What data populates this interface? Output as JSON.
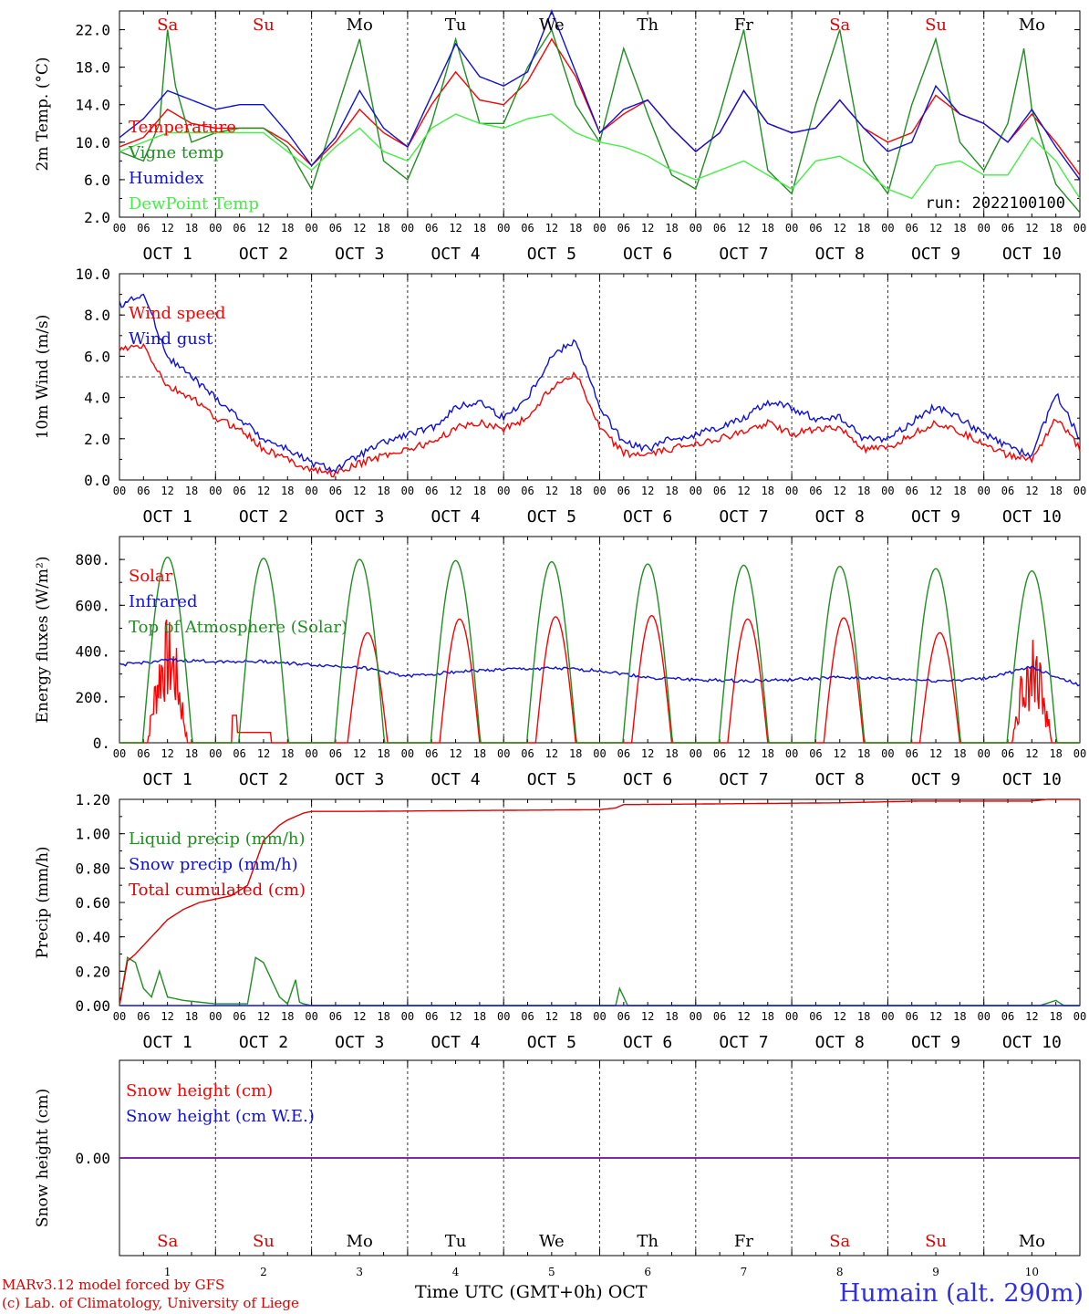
{
  "chart_data": [
    {
      "type": "line",
      "ylabel": "2m Temp. (°C)",
      "ylim": [
        2.0,
        24.0
      ],
      "yticks": [
        2.0,
        6.0,
        10.0,
        14.0,
        18.0,
        22.0
      ],
      "ytick_labels": [
        "2.0",
        "6.0",
        "10.0",
        "14.0",
        "18.0",
        "22.0"
      ],
      "x_unit": "hours since 00 UTC Oct 1",
      "annotation": "run: 2022100100",
      "series": [
        {
          "name": "Temperature",
          "color": "#ff0000",
          "x": [
            0,
            6,
            12,
            18,
            24,
            30,
            36,
            42,
            48,
            54,
            60,
            66,
            72,
            78,
            84,
            90,
            96,
            102,
            108,
            114,
            120,
            126,
            132,
            138,
            144,
            150,
            156,
            162,
            168,
            174,
            180,
            186,
            192,
            198,
            204,
            210,
            216,
            222,
            228,
            234,
            240
          ],
          "values": [
            9.5,
            10.5,
            13.5,
            12.0,
            11.5,
            11.5,
            11.5,
            10.0,
            7.5,
            10.0,
            13.5,
            11.0,
            9.5,
            14.0,
            17.5,
            14.5,
            14.0,
            16.5,
            21.0,
            17.0,
            11.0,
            13.0,
            14.5,
            11.5,
            9.0,
            11.0,
            15.5,
            12.0,
            11.0,
            11.5,
            14.5,
            11.5,
            10.0,
            11.0,
            15.0,
            13.0,
            12.0,
            10.0,
            13.0,
            10.0,
            6.5
          ]
        },
        {
          "name": "Vigne temp",
          "color": "#1f8f1f",
          "x": [
            0,
            6,
            10,
            12,
            14,
            18,
            24,
            30,
            36,
            42,
            48,
            54,
            60,
            66,
            72,
            78,
            84,
            90,
            96,
            102,
            108,
            114,
            120,
            126,
            132,
            138,
            144,
            150,
            156,
            162,
            168,
            174,
            180,
            186,
            192,
            198,
            204,
            210,
            216,
            222,
            226,
            228,
            234,
            240
          ],
          "values": [
            9.0,
            8.0,
            12.0,
            22.0,
            16.0,
            10.0,
            11.0,
            11.5,
            11.5,
            9.5,
            5.0,
            13.0,
            21.0,
            8.0,
            6.0,
            12.0,
            21.0,
            12.0,
            12.0,
            18.0,
            22.0,
            14.0,
            10.0,
            20.0,
            13.0,
            6.5,
            5.0,
            13.0,
            22.0,
            7.0,
            4.5,
            14.0,
            22.0,
            8.0,
            4.5,
            14.0,
            21.0,
            10.0,
            7.0,
            12.0,
            20.0,
            13.5,
            5.5,
            2.5
          ]
        },
        {
          "name": "Humidex",
          "color": "#1010dd",
          "x": [
            0,
            6,
            12,
            18,
            24,
            30,
            36,
            42,
            48,
            54,
            60,
            66,
            72,
            78,
            84,
            90,
            96,
            102,
            108,
            114,
            120,
            126,
            132,
            138,
            144,
            150,
            156,
            162,
            168,
            174,
            180,
            186,
            192,
            198,
            204,
            210,
            216,
            222,
            228,
            234,
            240
          ],
          "values": [
            10.5,
            12.5,
            15.5,
            14.5,
            13.5,
            14.0,
            14.0,
            11.0,
            7.5,
            10.5,
            15.5,
            11.5,
            9.5,
            15.0,
            20.5,
            17.0,
            16.0,
            17.5,
            24.0,
            17.5,
            11.0,
            13.5,
            14.5,
            11.5,
            9.0,
            11.0,
            15.5,
            12.0,
            11.0,
            11.5,
            14.5,
            11.5,
            9.0,
            10.0,
            16.0,
            13.0,
            12.0,
            10.0,
            13.5,
            9.5,
            6.0
          ]
        },
        {
          "name": "DewPoint Temp",
          "color": "#44ee44",
          "x": [
            0,
            6,
            12,
            18,
            24,
            30,
            36,
            42,
            48,
            54,
            60,
            66,
            72,
            78,
            84,
            90,
            96,
            102,
            108,
            114,
            120,
            126,
            132,
            138,
            144,
            150,
            156,
            162,
            168,
            174,
            180,
            186,
            192,
            198,
            204,
            210,
            216,
            222,
            228,
            234,
            240
          ],
          "values": [
            9.0,
            10.0,
            11.0,
            11.0,
            11.0,
            11.0,
            11.0,
            9.0,
            7.0,
            9.5,
            11.5,
            9.0,
            8.0,
            11.5,
            13.0,
            12.0,
            11.5,
            12.5,
            13.0,
            11.0,
            10.0,
            9.5,
            8.5,
            7.0,
            6.0,
            7.0,
            8.0,
            6.5,
            5.0,
            8.0,
            8.5,
            7.0,
            5.0,
            4.0,
            7.5,
            8.0,
            6.5,
            6.5,
            10.5,
            8.0,
            4.0
          ]
        }
      ]
    },
    {
      "type": "line",
      "ylabel": "10m Wind (m/s)",
      "ylim": [
        0.0,
        10.0
      ],
      "yticks": [
        0.0,
        2.0,
        4.0,
        6.0,
        8.0,
        10.0
      ],
      "ytick_labels": [
        "0.0",
        "2.0",
        "4.0",
        "6.0",
        "8.0",
        "10.0"
      ],
      "reference_line": 5.0,
      "x_unit": "hours since 00 UTC Oct 1",
      "series": [
        {
          "name": "Wind speed",
          "color": "#ff0000",
          "x": [
            0,
            6,
            12,
            18,
            24,
            30,
            36,
            42,
            48,
            54,
            60,
            66,
            72,
            78,
            84,
            90,
            96,
            102,
            108,
            114,
            120,
            126,
            132,
            138,
            144,
            150,
            156,
            162,
            168,
            174,
            180,
            186,
            192,
            198,
            204,
            210,
            216,
            222,
            228,
            234,
            240
          ],
          "values": [
            6.3,
            6.5,
            4.5,
            4.0,
            3.0,
            2.5,
            1.5,
            1.0,
            0.5,
            0.3,
            0.8,
            1.2,
            1.5,
            1.8,
            2.5,
            2.8,
            2.5,
            3.0,
            4.5,
            5.2,
            2.5,
            1.3,
            1.2,
            1.5,
            1.8,
            2.0,
            2.3,
            2.8,
            2.2,
            2.5,
            2.5,
            1.5,
            1.5,
            2.2,
            2.8,
            2.3,
            1.8,
            1.2,
            1.0,
            3.0,
            1.5
          ]
        },
        {
          "name": "Wind gust",
          "color": "#1010dd",
          "x": [
            0,
            6,
            12,
            18,
            24,
            30,
            36,
            42,
            48,
            54,
            60,
            66,
            72,
            78,
            84,
            90,
            96,
            102,
            108,
            114,
            120,
            126,
            132,
            138,
            144,
            150,
            156,
            162,
            168,
            174,
            180,
            186,
            192,
            198,
            204,
            210,
            216,
            222,
            228,
            234,
            240
          ],
          "values": [
            8.5,
            9.0,
            6.0,
            5.0,
            4.0,
            3.0,
            2.0,
            1.5,
            0.8,
            0.5,
            1.2,
            1.8,
            2.2,
            2.5,
            3.5,
            3.8,
            3.0,
            4.0,
            6.0,
            6.8,
            3.5,
            1.8,
            1.5,
            2.0,
            2.2,
            2.6,
            3.0,
            3.8,
            3.5,
            3.0,
            3.0,
            2.0,
            2.0,
            2.8,
            3.6,
            3.0,
            2.2,
            1.6,
            1.2,
            4.2,
            2.0
          ]
        }
      ]
    },
    {
      "type": "line",
      "ylabel": "Energy fluxes (W/m²)",
      "ylim": [
        0,
        900
      ],
      "yticks": [
        0,
        200,
        400,
        600,
        800
      ],
      "ytick_labels": [
        "0.",
        "200.",
        "400.",
        "600.",
        "800."
      ],
      "x_unit": "hours since 00 UTC Oct 1",
      "series": [
        {
          "name": "Solar",
          "color": "#ff0000",
          "daily_peak": [
            550,
            120,
            480,
            540,
            550,
            555,
            540,
            545,
            480,
            470
          ],
          "daily_peak_hour": [
            12,
            9,
            14,
            13,
            13,
            13,
            13,
            13,
            13,
            12
          ]
        },
        {
          "name": "Infrared",
          "color": "#1010dd",
          "x": [
            0,
            12,
            24,
            36,
            48,
            60,
            72,
            84,
            96,
            108,
            120,
            132,
            144,
            156,
            168,
            180,
            192,
            204,
            216,
            228,
            240
          ],
          "values": [
            340,
            360,
            355,
            355,
            340,
            330,
            290,
            310,
            320,
            325,
            315,
            285,
            275,
            270,
            275,
            285,
            280,
            270,
            280,
            330,
            250
          ]
        },
        {
          "name": "Top of Atmosphere (Solar)",
          "color": "#1f8f1f",
          "daily_peak": [
            810,
            805,
            800,
            795,
            790,
            780,
            775,
            770,
            760,
            750
          ],
          "daily_peak_hour": [
            12,
            12,
            12,
            12,
            12,
            12,
            12,
            12,
            12,
            12
          ]
        }
      ]
    },
    {
      "type": "line",
      "ylabel": "Precip (mm/h)",
      "ylim": [
        0.0,
        1.2
      ],
      "yticks": [
        0.0,
        0.2,
        0.4,
        0.6,
        0.8,
        1.0,
        1.2
      ],
      "ytick_labels": [
        "0.00",
        "0.20",
        "0.40",
        "0.60",
        "0.80",
        "1.00",
        "1.20"
      ],
      "x_unit": "hours since 00 UTC Oct 1",
      "series": [
        {
          "name": "Liquid precip (mm/h)",
          "color": "#1f8f1f",
          "x": [
            0,
            2,
            4,
            6,
            8,
            10,
            12,
            16,
            20,
            24,
            28,
            32,
            34,
            36,
            40,
            42,
            44,
            45,
            46,
            48,
            54,
            60,
            120,
            124,
            125,
            126,
            127,
            130,
            180,
            230,
            234,
            236,
            240
          ],
          "values": [
            0.0,
            0.28,
            0.25,
            0.1,
            0.05,
            0.2,
            0.05,
            0.03,
            0.02,
            0.01,
            0.01,
            0.01,
            0.28,
            0.25,
            0.05,
            0.01,
            0.15,
            0.02,
            0.01,
            0.0,
            0.0,
            0.0,
            0.0,
            0.0,
            0.1,
            0.05,
            0.0,
            0.0,
            0.0,
            0.0,
            0.03,
            0.0,
            0.0
          ]
        },
        {
          "name": "Snow precip (mm/h)",
          "color": "#1010dd",
          "x": [
            0,
            240
          ],
          "values": [
            0.0,
            0.0
          ]
        },
        {
          "name": "Total cumulated (cm)",
          "color": "#e00000",
          "x": [
            0,
            2,
            4,
            8,
            12,
            16,
            20,
            24,
            28,
            32,
            36,
            40,
            42,
            44,
            46,
            48,
            54,
            60,
            120,
            124,
            126,
            130,
            180,
            200,
            228,
            232,
            240
          ],
          "values": [
            0.0,
            0.26,
            0.3,
            0.4,
            0.5,
            0.56,
            0.6,
            0.62,
            0.64,
            0.7,
            0.96,
            1.05,
            1.08,
            1.1,
            1.12,
            1.13,
            1.13,
            1.13,
            1.14,
            1.15,
            1.17,
            1.17,
            1.18,
            1.19,
            1.19,
            1.2,
            1.2
          ]
        }
      ]
    },
    {
      "type": "line",
      "ylabel": "Snow height (cm)",
      "yticks": [
        0.0
      ],
      "ytick_labels": [
        "0.00"
      ],
      "x_unit": "hours since 00 UTC Oct 1",
      "series": [
        {
          "name": "Snow height (cm)",
          "color": "#ff0000",
          "x": [
            0,
            240
          ],
          "values": [
            0.0,
            0.0
          ]
        },
        {
          "name": "Snow height (cm W.E.)",
          "color": "#1010dd",
          "x": [
            0,
            240
          ],
          "values": [
            0.0,
            0.0
          ]
        }
      ]
    }
  ],
  "x_axis": {
    "hour_ticks": [
      "00",
      "06",
      "12",
      "18"
    ],
    "day_labels": [
      "OCT  1",
      "OCT  2",
      "OCT  3",
      "OCT  4",
      "OCT  5",
      "OCT  6",
      "OCT  7",
      "OCT  8",
      "OCT  9",
      "OCT 10"
    ],
    "weekdays": [
      "Sa",
      "Su",
      "Mo",
      "Tu",
      "We",
      "Th",
      "Fr",
      "Sa",
      "Su",
      "Mo"
    ],
    "weekend_color": "#e00000",
    "day_numbers": [
      "1",
      "2",
      "3",
      "4",
      "5",
      "6",
      "7",
      "8",
      "9",
      "10"
    ],
    "title": "Time UTC (GMT+0h)",
    "month": "OCT"
  },
  "footer": {
    "credit_line1": "MARv3.12 model forced by GFS",
    "credit_line2": "(c) Lab. of Climatology, University of Liege",
    "station": "Humain (alt. 290m)"
  }
}
